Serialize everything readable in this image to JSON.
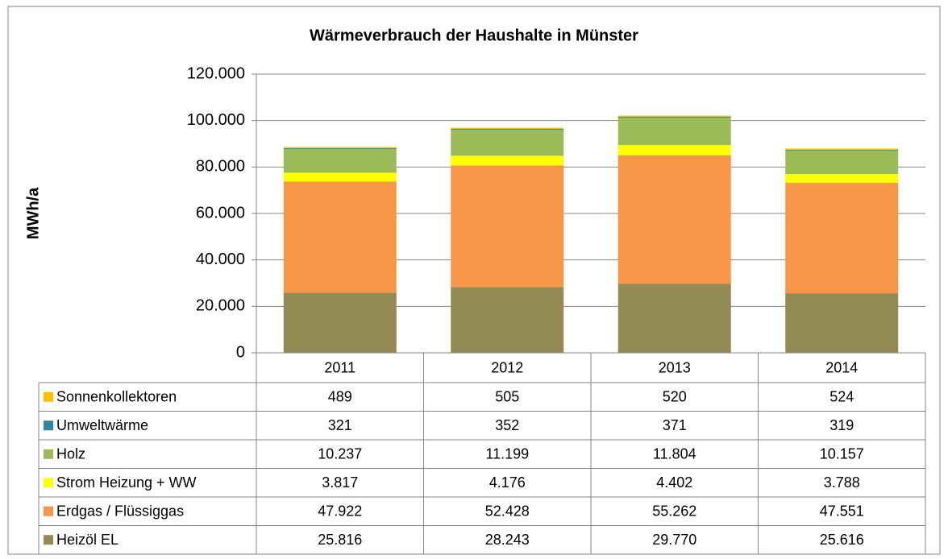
{
  "chart_data": {
    "type": "stacked_bar",
    "title": "Wärmeverbrauch der Haushalte in Münster",
    "y_label": "MWh/a",
    "categories": [
      "2011",
      "2012",
      "2013",
      "2014"
    ],
    "series": [
      {
        "name": "Heizöl EL",
        "color": "#948a54",
        "values": [
          25816,
          28243,
          29770,
          25616
        ],
        "value_labels": [
          "25.816",
          "28.243",
          "29.770",
          "25.616"
        ]
      },
      {
        "name": "Erdgas / Flüssiggas",
        "color": "#f79646",
        "values": [
          47922,
          52428,
          55262,
          47551
        ],
        "value_labels": [
          "47.922",
          "52.428",
          "55.262",
          "47.551"
        ]
      },
      {
        "name": "Strom Heizung + WW",
        "color": "#ffff00",
        "values": [
          3817,
          4176,
          4402,
          3788
        ],
        "value_labels": [
          "3.817",
          "4.176",
          "4.402",
          "3.788"
        ]
      },
      {
        "name": "Holz",
        "color": "#9bbb59",
        "values": [
          10237,
          11199,
          11804,
          10157
        ],
        "value_labels": [
          "10.237",
          "11.199",
          "11.804",
          "10.157"
        ]
      },
      {
        "name": "Umweltwärme",
        "color": "#31859c",
        "values": [
          321,
          352,
          371,
          319
        ],
        "value_labels": [
          "321",
          "352",
          "371",
          "319"
        ]
      },
      {
        "name": "Sonnenkollektoren",
        "color": "#ffc000",
        "values": [
          489,
          505,
          520,
          524
        ],
        "value_labels": [
          "489",
          "505",
          "520",
          "524"
        ]
      }
    ],
    "ylim": [
      0,
      120000
    ],
    "yticks": [
      0,
      {
        "value": 20000,
        "label": "20.000"
      },
      {
        "value": 40000,
        "label": "40.000"
      },
      {
        "value": 60000,
        "label": "60.000"
      },
      {
        "value": 80000,
        "label": "80.000"
      },
      {
        "value": 100000,
        "label": "100.000"
      },
      {
        "value": 120000,
        "label": "120.000"
      }
    ],
    "grid": true
  }
}
